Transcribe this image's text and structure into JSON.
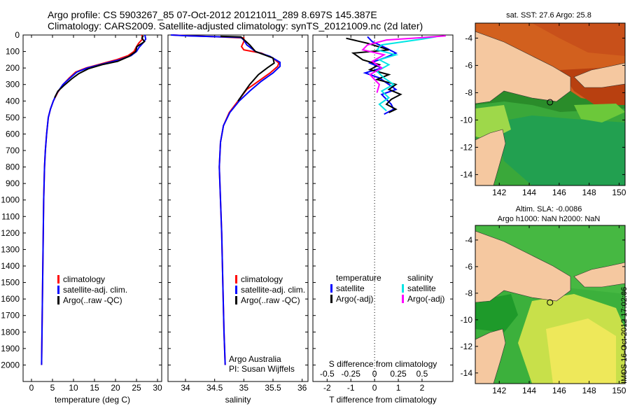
{
  "header": {
    "line1": "Argo profile: CS 5903267_85 07-Oct-2012 20121011_289 8.697S 145.387E",
    "line2": "Climatology: CARS2009. Satellite-adjusted climatology: synTS_20121009.nc (2d later)"
  },
  "colors": {
    "climatology": "#ff0000",
    "satellite": "#0000ff",
    "argo": "#000000",
    "sal_satellite": "#00e5e5",
    "sal_argo": "#ff00ff",
    "land": "#f5c8a0"
  },
  "chart_data": [
    {
      "type": "line",
      "id": "temperature",
      "xlabel": "temperature (deg C)",
      "xlim": [
        -2,
        31
      ],
      "ylim": [
        2100,
        0
      ],
      "xticks": [
        0,
        5,
        10,
        15,
        20,
        25,
        30
      ],
      "yticks": [
        0,
        100,
        200,
        300,
        400,
        500,
        600,
        700,
        800,
        900,
        1000,
        1100,
        1200,
        1300,
        1400,
        1500,
        1600,
        1700,
        1800,
        1900,
        2000
      ],
      "legend": [
        "climatology",
        "satellite-adj. clim.",
        "Argo(..raw -QC)"
      ],
      "series": [
        {
          "name": "climatology",
          "color": "#ff0000",
          "x": [
            26.3,
            26.4,
            25.5,
            24.9,
            24.4,
            23.0,
            20.2,
            16.5,
            13.0,
            10.5,
            9.0,
            7.5,
            6.2,
            5.2,
            4.5,
            4.0,
            3.6,
            3.3,
            3.1,
            2.9,
            2.8,
            2.7,
            2.6,
            2.5,
            2.45,
            2.4
          ],
          "y": [
            0,
            25,
            50,
            75,
            100,
            125,
            150,
            175,
            200,
            225,
            260,
            300,
            350,
            400,
            450,
            500,
            600,
            700,
            800,
            1000,
            1200,
            1400,
            1600,
            1800,
            1900,
            2000
          ]
        },
        {
          "name": "satellite-adj. clim.",
          "color": "#0000ff",
          "x": [
            27.0,
            27.2,
            26.5,
            25.6,
            25.0,
            23.7,
            21.0,
            17.0,
            13.3,
            10.8,
            9.2,
            7.5,
            6.1,
            5.2,
            4.5,
            4.0,
            3.6,
            3.3,
            3.1,
            2.9,
            2.8,
            2.7,
            2.6,
            2.5,
            2.45,
            2.4
          ],
          "y": [
            0,
            25,
            50,
            75,
            100,
            125,
            150,
            175,
            200,
            225,
            260,
            300,
            350,
            400,
            450,
            500,
            600,
            700,
            800,
            1000,
            1200,
            1400,
            1600,
            1800,
            1900,
            2000
          ]
        },
        {
          "name": "Argo(..raw -QC)",
          "color": "#000000",
          "x": [
            26.6,
            26.3,
            26.9,
            25.1,
            24.8,
            23.2,
            20.5,
            16.8,
            13.5,
            11.2,
            9.6,
            8.0,
            6.3,
            5.5
          ],
          "y": [
            4,
            20,
            40,
            70,
            100,
            130,
            160,
            180,
            205,
            235,
            265,
            300,
            340,
            380
          ]
        }
      ]
    },
    {
      "type": "line",
      "id": "salinity",
      "xlabel": "salinity",
      "xlim": [
        33.7,
        36.1
      ],
      "ylim": [
        2100,
        0
      ],
      "xticks": [
        34,
        34.5,
        35,
        35.5,
        36
      ],
      "legend": [
        "climatology",
        "satellite-adj. clim.",
        "Argo(..raw -QC)"
      ],
      "annotation": [
        "Argo Australia",
        "PI: Susan Wijffels"
      ],
      "series": [
        {
          "name": "climatology",
          "color": "#ff0000",
          "x": [
            33.78,
            34.1,
            34.5,
            35.0,
            35.0,
            34.96,
            35.0,
            35.3,
            35.5,
            35.6,
            35.58,
            35.45,
            35.25,
            35.05,
            34.9,
            34.75,
            34.65,
            34.6,
            34.58,
            34.6,
            34.62,
            34.64,
            34.66,
            34.68
          ],
          "y": [
            0,
            5,
            10,
            18,
            40,
            70,
            90,
            110,
            140,
            170,
            190,
            230,
            280,
            330,
            400,
            470,
            550,
            650,
            800,
            1000,
            1200,
            1500,
            1800,
            2000
          ]
        },
        {
          "name": "satellite-adj. clim.",
          "color": "#0000ff",
          "x": [
            33.75,
            34.05,
            34.5,
            34.95,
            35.0,
            35.05,
            35.2,
            35.45,
            35.62,
            35.62,
            35.5,
            35.3,
            35.1,
            34.92,
            34.76,
            34.65,
            34.6,
            34.58,
            34.6,
            34.62,
            34.64,
            34.66,
            34.68
          ],
          "y": [
            0,
            5,
            10,
            15,
            30,
            60,
            100,
            130,
            165,
            190,
            230,
            280,
            340,
            400,
            470,
            550,
            650,
            800,
            1000,
            1200,
            1500,
            1800,
            2000
          ]
        },
        {
          "name": "Argo(..raw -QC)",
          "color": "#000000",
          "x": [
            34.6,
            34.95,
            35.1,
            35.2,
            35.5,
            35.52,
            35.4,
            35.25,
            35.1,
            35.0,
            34.9
          ],
          "y": [
            8,
            12,
            60,
            100,
            140,
            170,
            200,
            240,
            300,
            350,
            400
          ]
        }
      ]
    },
    {
      "type": "line",
      "id": "difference",
      "xlabel": "T difference from climatology",
      "xlabel_top": "S difference from climatology",
      "t_xlim": [
        -2.6,
        3.3
      ],
      "t_xticks": [
        -2,
        -1,
        0,
        1,
        2
      ],
      "s_xticks": [
        -0.5,
        -0.25,
        0,
        0.25,
        0.5
      ],
      "s_xticklabels": [
        "-0.5",
        "-0.25",
        "0",
        "0.25",
        "0.5"
      ],
      "legend_temperature": [
        "temperature",
        "satellite",
        "Argo(-adj)"
      ],
      "legend_salinity": [
        "salinity",
        "satellite",
        "Argo(-adj)"
      ],
      "series": [
        {
          "name": "T satellite",
          "color": "#0000ff",
          "x": [
            -0.3,
            -0.1,
            0.5,
            0.9,
            0.4,
            -0.2,
            0.3,
            -0.4,
            0.2,
            0.6,
            0.9,
            0.3,
            0.5,
            0.7,
            0.8,
            0.4
          ],
          "y": [
            10,
            40,
            80,
            110,
            140,
            170,
            200,
            230,
            260,
            300,
            330,
            360,
            390,
            420,
            450,
            480
          ]
        },
        {
          "name": "T Argo(-adj)",
          "color": "#000000",
          "x": [
            -1.2,
            -0.3,
            0.6,
            -0.9,
            -0.5,
            0.2,
            -0.2,
            0.6,
            0.1,
            0.9,
            0.6,
            1.1,
            0.7,
            0.5,
            0.9,
            0.6
          ],
          "y": [
            20,
            50,
            90,
            110,
            150,
            180,
            210,
            240,
            270,
            300,
            330,
            360,
            390,
            420,
            450,
            470
          ]
        },
        {
          "name": "S satellite",
          "color": "#00e5e5",
          "x": [
            2.6,
            2.0,
            0.3,
            0.1,
            0.9,
            0.2,
            0.6,
            0.1,
            0.4,
            0.8,
            0.3,
            0.6,
            0.2,
            0.5
          ],
          "y": [
            10,
            25,
            60,
            90,
            120,
            150,
            180,
            220,
            260,
            300,
            340,
            380,
            420,
            460
          ]
        },
        {
          "name": "S Argo(-adj)",
          "color": "#ff00ff",
          "x": [
            3.0,
            2.1,
            0.5,
            -0.3,
            -0.5,
            0.4,
            -0.1,
            0.3,
            -0.2,
            0.2,
            0.1
          ],
          "y": [
            5,
            15,
            30,
            60,
            90,
            120,
            160,
            200,
            240,
            300,
            350
          ]
        }
      ]
    },
    {
      "type": "heatmap",
      "id": "sst-map",
      "title": "sat. SST: 27.6 Argo: 25.8",
      "xticks": [
        142,
        144,
        146,
        148,
        150
      ],
      "yticks": [
        -4,
        -6,
        -8,
        -10,
        -12,
        -14
      ],
      "xlim": [
        140.4,
        150.4
      ],
      "ylim": [
        -14.8,
        -2.9
      ],
      "argo_position": [
        145.387,
        -8.697
      ]
    },
    {
      "type": "heatmap",
      "id": "sla-map",
      "title": "Altim. SLA: -0.0086",
      "subtitle": "Argo h1000: NaN h2000: NaN",
      "xticks": [
        142,
        144,
        146,
        148,
        150
      ],
      "yticks": [
        -4,
        -6,
        -8,
        -10,
        -12,
        -14
      ],
      "xlim": [
        140.4,
        150.4
      ],
      "ylim": [
        -14.8,
        -2.9
      ],
      "argo_position": [
        145.387,
        -8.697
      ]
    }
  ],
  "sidebar": {
    "stamp": "IMOS 16-Oct-2012 17:02:06"
  }
}
